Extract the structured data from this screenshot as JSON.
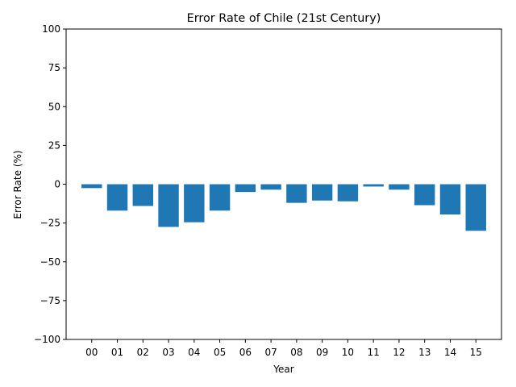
{
  "chart_data": {
    "type": "bar",
    "title": "Error Rate of Chile (21st Century)",
    "xlabel": "Year",
    "ylabel": "Error Rate (%)",
    "ylim": [
      -100,
      100
    ],
    "yticks": [
      -100,
      -75,
      -50,
      -25,
      0,
      25,
      50,
      75,
      100
    ],
    "categories": [
      "00",
      "01",
      "02",
      "03",
      "04",
      "05",
      "06",
      "07",
      "08",
      "09",
      "10",
      "11",
      "12",
      "13",
      "14",
      "15"
    ],
    "values": [
      -2.5,
      -17.0,
      -14.0,
      -27.5,
      -24.5,
      -17.0,
      -5.0,
      -3.5,
      -12.0,
      -10.5,
      -11.0,
      -1.5,
      -3.5,
      -13.5,
      -19.5,
      -30.0
    ],
    "bar_color": "#1f77b4",
    "grid": false
  }
}
